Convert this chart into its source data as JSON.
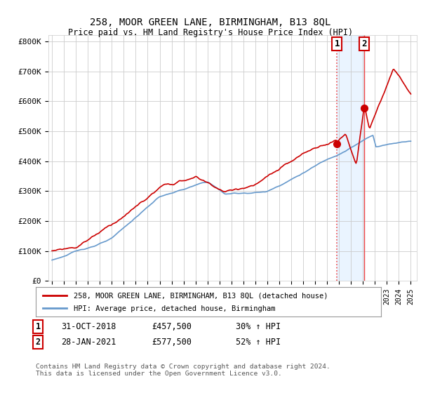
{
  "title": "258, MOOR GREEN LANE, BIRMINGHAM, B13 8QL",
  "subtitle": "Price paid vs. HM Land Registry's House Price Index (HPI)",
  "ylim": [
    0,
    820000
  ],
  "yticks": [
    0,
    100000,
    200000,
    300000,
    400000,
    500000,
    600000,
    700000,
    800000
  ],
  "ytick_labels": [
    "£0",
    "£100K",
    "£200K",
    "£300K",
    "£400K",
    "£500K",
    "£600K",
    "£700K",
    "£800K"
  ],
  "background_color": "#ffffff",
  "plot_bg_color": "#ffffff",
  "grid_color": "#cccccc",
  "legend_line1": "258, MOOR GREEN LANE, BIRMINGHAM, B13 8QL (detached house)",
  "legend_line2": "HPI: Average price, detached house, Birmingham",
  "footer": "Contains HM Land Registry data © Crown copyright and database right 2024.\nThis data is licensed under the Open Government Licence v3.0.",
  "hpi_color": "#6699cc",
  "property_color": "#cc0000",
  "vline_color": "#ee4444",
  "shade_color": "#ddeeff",
  "t1": 2018.83,
  "t2": 2021.08,
  "t1_price": 457500,
  "t2_price": 577500,
  "transaction1_date": "31-OCT-2018",
  "transaction1_price_str": "£457,500",
  "transaction1_hpi": "30% ↑ HPI",
  "transaction2_date": "28-JAN-2021",
  "transaction2_price_str": "£577,500",
  "transaction2_hpi": "52% ↑ HPI"
}
